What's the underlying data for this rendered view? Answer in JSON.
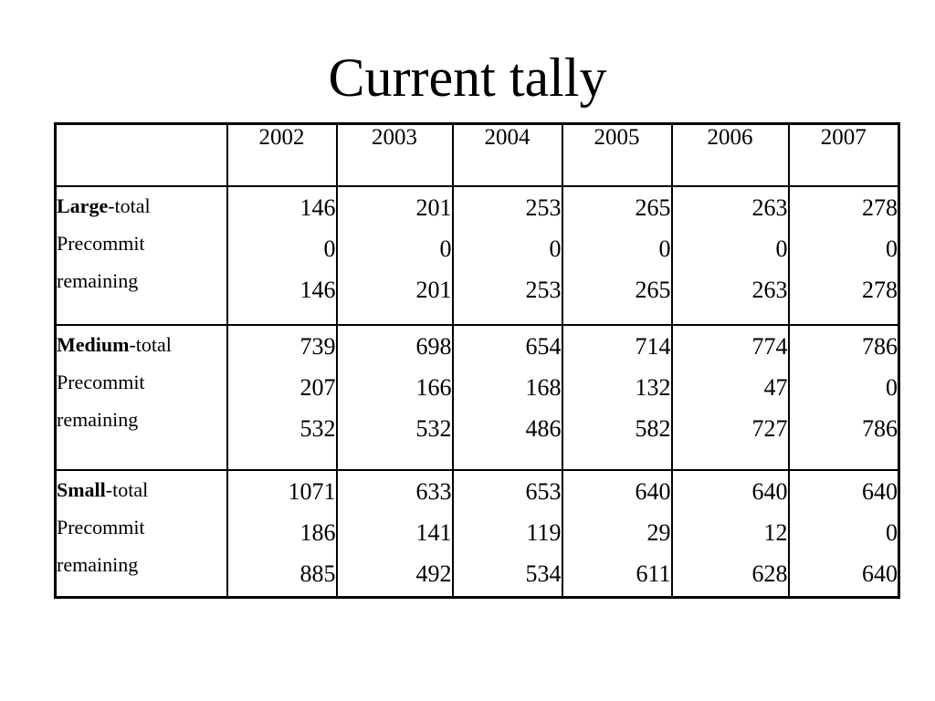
{
  "title": "Current tally",
  "years": [
    "2002",
    "2003",
    "2004",
    "2005",
    "2006",
    "2007"
  ],
  "row_labels": {
    "total_suffix": "-total",
    "precommit": "Precommit",
    "remaining": "remaining"
  },
  "groups": [
    {
      "name": "Large",
      "values": [
        [
          "146",
          "0",
          "146"
        ],
        [
          "201",
          "0",
          "201"
        ],
        [
          "253",
          "0",
          "253"
        ],
        [
          "265",
          "0",
          "265"
        ],
        [
          "263",
          "0",
          "263"
        ],
        [
          "278",
          "0",
          "278"
        ]
      ]
    },
    {
      "name": "Medium",
      "values": [
        [
          "739",
          "207",
          "532"
        ],
        [
          "698",
          "166",
          "532"
        ],
        [
          "654",
          "168",
          "486"
        ],
        [
          "714",
          "132",
          "582"
        ],
        [
          "774",
          "47",
          "727"
        ],
        [
          "786",
          "0",
          "786"
        ]
      ]
    },
    {
      "name": "Small",
      "values": [
        [
          "1071",
          "186",
          "885"
        ],
        [
          "633",
          "141",
          "492"
        ],
        [
          "653",
          "119",
          "534"
        ],
        [
          "640",
          "29",
          "611"
        ],
        [
          "640",
          "12",
          "628"
        ],
        [
          "640",
          "0",
          "640"
        ]
      ]
    }
  ]
}
